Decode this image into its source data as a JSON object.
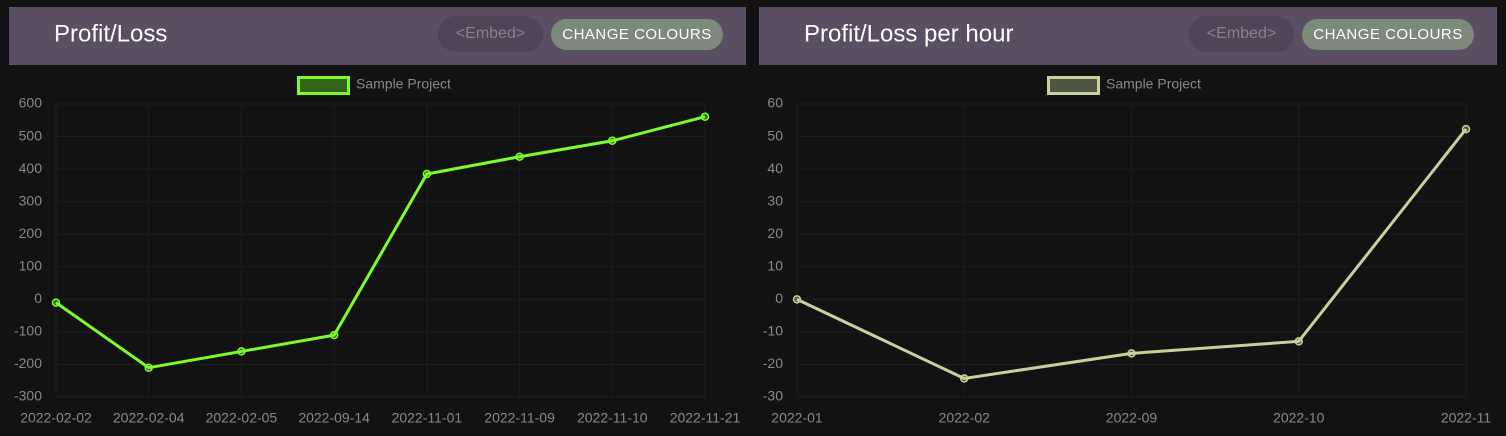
{
  "chart_data": [
    {
      "type": "line",
      "title": "Profit/Loss",
      "embed": "<Embed>",
      "button": "CHANGE COLOURS",
      "categories": [
        "2022-02-02",
        "2022-02-04",
        "2022-02-05",
        "2022-09-14",
        "2022-11-01",
        "2022-11-09",
        "2022-11-10",
        "2022-11-21"
      ],
      "series": [
        {
          "name": "Sample Project",
          "color": "#7cfc2a",
          "values": [
            -10,
            -210,
            -160,
            -110,
            385,
            438,
            487,
            561
          ]
        }
      ],
      "ylim": [
        -300,
        600
      ],
      "yticks": [
        -300,
        -200,
        -100,
        0,
        100,
        200,
        300,
        400,
        500,
        600
      ],
      "grid": true,
      "legend": "top"
    },
    {
      "type": "line",
      "title": "Profit/Loss per hour",
      "embed": "<Embed>",
      "button": "CHANGE COLOURS",
      "categories": [
        "2022-01",
        "2022-02",
        "2022-09",
        "2022-10",
        "2022-11"
      ],
      "series": [
        {
          "name": "Sample Project",
          "color": "#c5d39a",
          "values": [
            0,
            -24.3,
            -16.6,
            -12.9,
            52.3
          ]
        }
      ],
      "ylim": [
        -30,
        60
      ],
      "yticks": [
        -30,
        -20,
        -10,
        0,
        10,
        20,
        30,
        40,
        50,
        60
      ],
      "grid": true,
      "legend": "top"
    }
  ]
}
